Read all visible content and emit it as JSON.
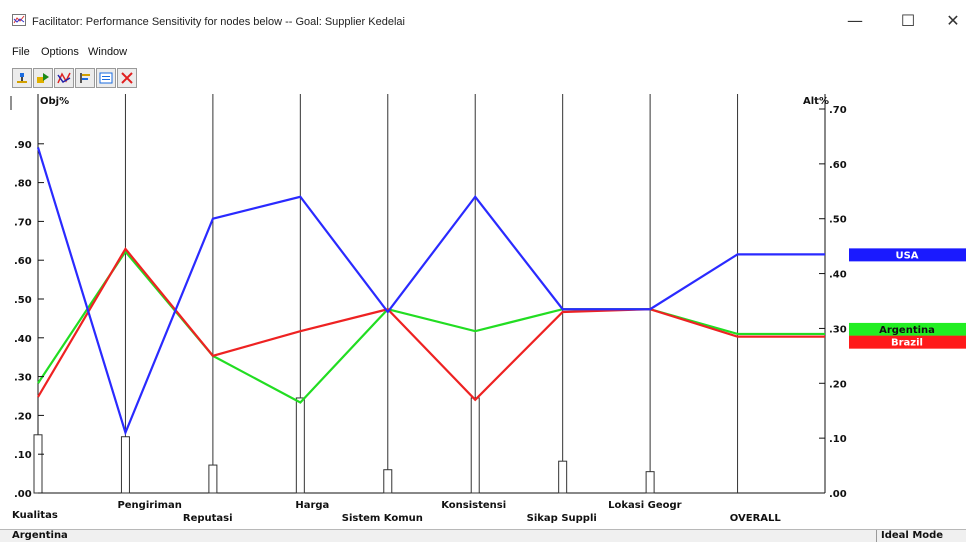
{
  "window": {
    "title": "Facilitator: Performance Sensitivity for nodes below -- Goal: Supplier Kedelai",
    "min_glyph": "—",
    "max_glyph": "☐",
    "close_glyph": "✕"
  },
  "menu": [
    "File",
    "Options",
    "Window"
  ],
  "toolbar": {
    "icons": [
      "grow-tree-icon",
      "import-icon",
      "sensitivity-icon",
      "alternatives-icon",
      "print-icon",
      "close-icon"
    ]
  },
  "chart_data": {
    "type": "line",
    "left_axis_label": "Obj%",
    "right_axis_label": "Alt%",
    "left_ticks": [
      ".00",
      ".10",
      ".20",
      ".30",
      ".40",
      ".50",
      ".60",
      ".70",
      ".80",
      ".90"
    ],
    "right_ticks": [
      ".00",
      ".10",
      ".20",
      ".30",
      ".40",
      ".50",
      ".60",
      ".70"
    ],
    "left_ylim": [
      0,
      1
    ],
    "right_ylim": [
      0,
      0.7
    ],
    "categories": [
      "Kualitas",
      "Pengiriman",
      "Reputasi",
      "Harga",
      "Sistem Komun",
      "Konsistensi",
      "Sikap Suppli",
      "Lokasi Geogr",
      "OVERALL"
    ],
    "objective_weights": [
      0.15,
      0.145,
      0.072,
      0.245,
      0.06,
      0.245,
      0.082,
      0.055
    ],
    "series": [
      {
        "name": "USA",
        "color": "#2a2aff",
        "values": [
          0.63,
          0.11,
          0.5,
          0.54,
          0.33,
          0.54,
          0.335,
          0.335,
          0.435
        ]
      },
      {
        "name": "Argentina",
        "color": "#22dd22",
        "values": [
          0.2,
          0.44,
          0.25,
          0.165,
          0.335,
          0.295,
          0.335,
          0.335,
          0.29
        ]
      },
      {
        "name": "Brazil",
        "color": "#ee2222",
        "values": [
          0.175,
          0.445,
          0.25,
          0.295,
          0.335,
          0.17,
          0.33,
          0.335,
          0.285
        ]
      }
    ],
    "legend_placement": "right"
  },
  "status": {
    "left": "Argentina",
    "right": "Ideal Mode"
  }
}
